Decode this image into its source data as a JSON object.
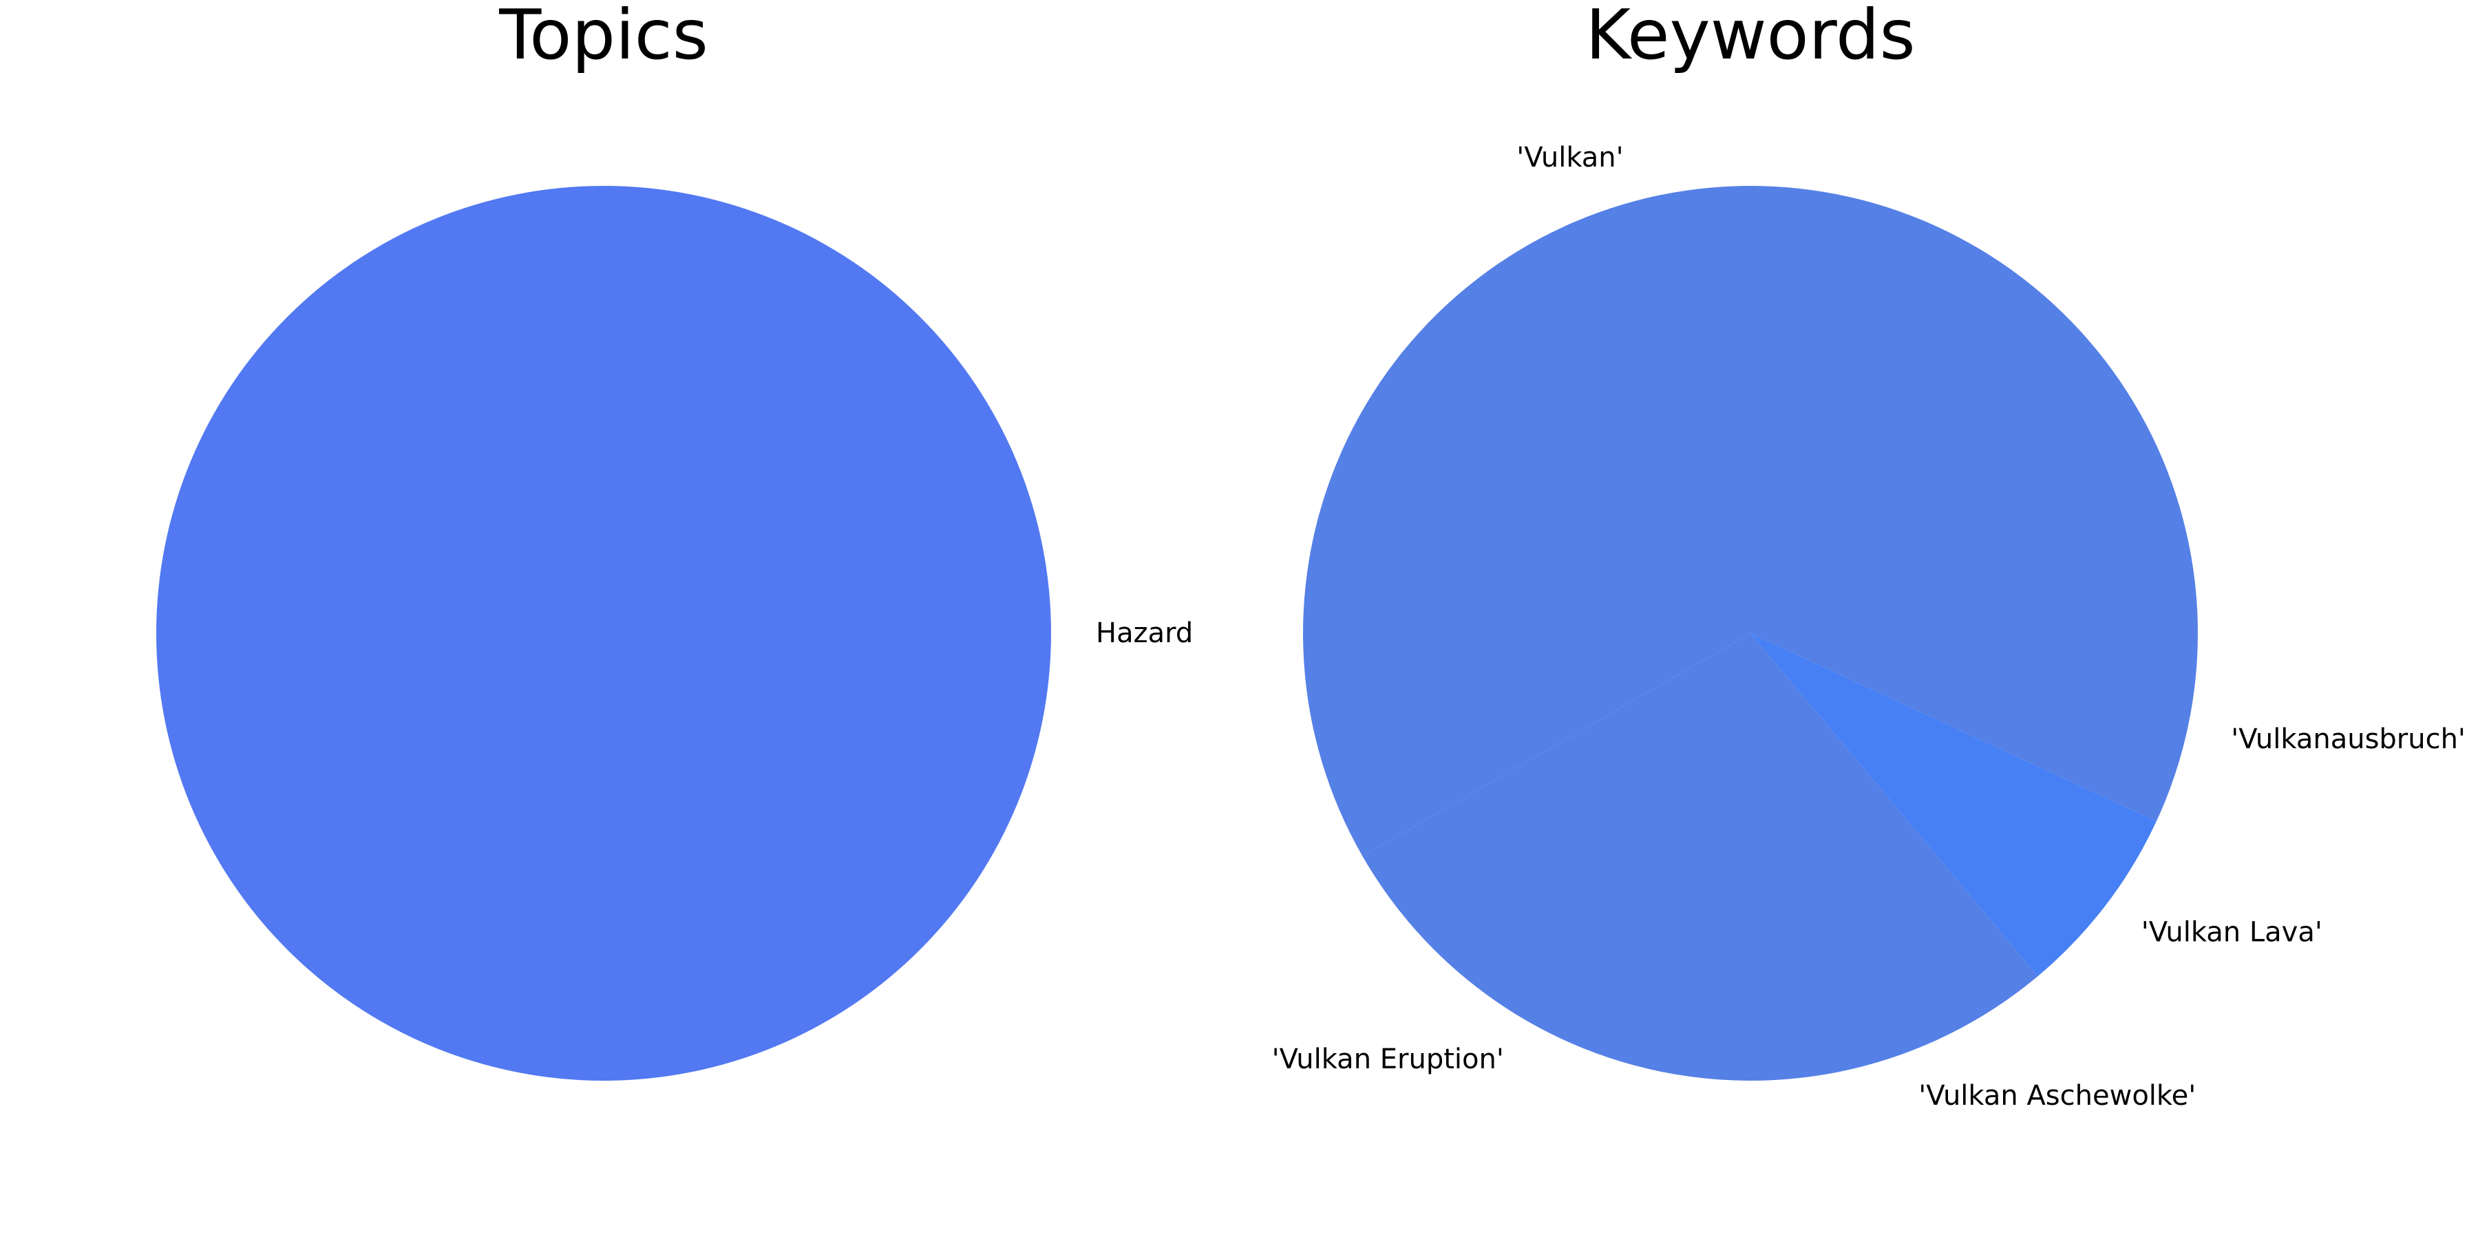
{
  "chart_data": [
    {
      "type": "pie",
      "title": "Topics",
      "labels": [
        "Hazard"
      ],
      "values": [
        1
      ],
      "colors": [
        "#5279f2"
      ],
      "start_angle_deg": 180,
      "direction": "counterclockwise",
      "legend": "none"
    },
    {
      "type": "pie",
      "title": "Keywords",
      "labels": [
        "'Vulkan'",
        "'Vulkan Eruption'",
        "'Vulkan Aschewolke'",
        "'Vulkan Lava'",
        "'Vulkanausbruch'"
      ],
      "values": [
        58.3,
        16.7,
        11.1,
        7.0,
        6.9
      ],
      "colors": [
        "#5580e6",
        "#5580e6",
        "#5580e6",
        "#4680f4",
        "#5580e6"
      ],
      "start_angle_deg": 0,
      "direction": "counterclockwise",
      "legend": "none"
    }
  ]
}
